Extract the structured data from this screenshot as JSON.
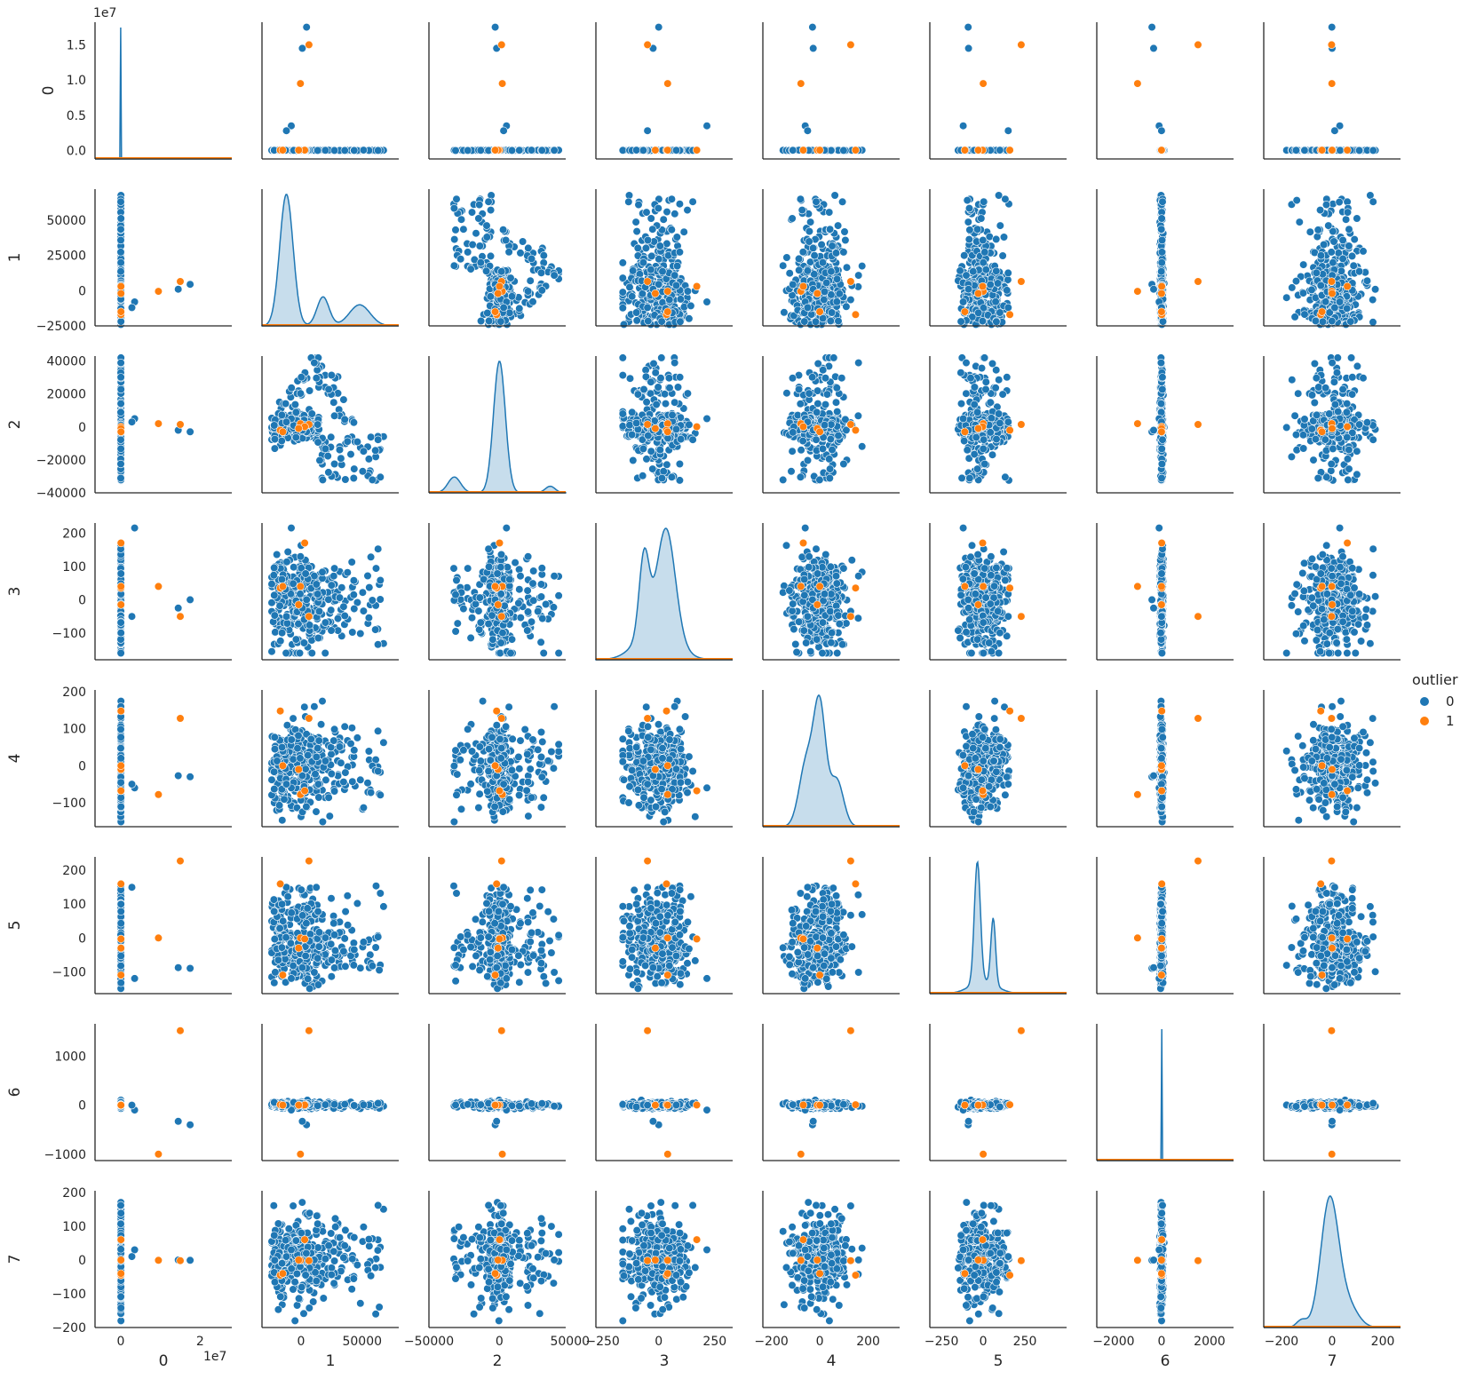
{
  "chart_data": {
    "type": "scatter",
    "chart_kind": "pairplot",
    "variables": [
      "0",
      "1",
      "2",
      "3",
      "4",
      "5",
      "6",
      "7"
    ],
    "diagonal": "kde",
    "offset_text": {
      "y_row0": "1e7",
      "x_col0": "1e7"
    },
    "hue": {
      "title": "outlier",
      "levels": [
        {
          "label": "0",
          "color": "#1f77b4"
        },
        {
          "label": "1",
          "color": "#ff7f0e"
        }
      ]
    },
    "axes": {
      "0": {
        "range": [
          -6500000,
          28000000
        ],
        "display_scale": 10000000,
        "y_range": [
          -1200000,
          18200000
        ],
        "x_ticks": [
          {
            "v": 0,
            "l": "0"
          },
          {
            "v": 20000000,
            "l": "2"
          }
        ],
        "y_ticks": [
          {
            "v": 0,
            "l": "0.0"
          },
          {
            "v": 5000000,
            "l": "0.5"
          },
          {
            "v": 10000000,
            "l": "1.0"
          },
          {
            "v": 15000000,
            "l": "1.5"
          }
        ]
      },
      "1": {
        "range": [
          -32000,
          80000
        ],
        "y_range": [
          -25000,
          72000
        ],
        "x_ticks": [
          {
            "v": 0,
            "l": "0"
          },
          {
            "v": 50000,
            "l": "50000"
          }
        ],
        "y_ticks": [
          {
            "v": -25000,
            "l": "−25000"
          },
          {
            "v": 0,
            "l": "0"
          },
          {
            "v": 25000,
            "l": "25000"
          },
          {
            "v": 50000,
            "l": "50000"
          }
        ]
      },
      "2": {
        "range": [
          -50000,
          47000
        ],
        "y_range": [
          -40000,
          43000
        ],
        "x_ticks": [
          {
            "v": -50000,
            "l": "−50000"
          },
          {
            "v": 0,
            "l": "0"
          },
          {
            "v": 50000,
            "l": "50000"
          }
        ],
        "y_ticks": [
          {
            "v": -40000,
            "l": "−40000"
          },
          {
            "v": -20000,
            "l": "−20000"
          },
          {
            "v": 0,
            "l": "0"
          },
          {
            "v": 20000,
            "l": "20000"
          },
          {
            "v": 40000,
            "l": "40000"
          }
        ]
      },
      "3": {
        "range": [
          -280,
          330
        ],
        "y_range": [
          -180,
          230
        ],
        "x_ticks": [
          {
            "v": -250,
            "l": "−250"
          },
          {
            "v": 0,
            "l": "0"
          },
          {
            "v": 250,
            "l": "250"
          }
        ],
        "y_ticks": [
          {
            "v": -100,
            "l": "−100"
          },
          {
            "v": 0,
            "l": "0"
          },
          {
            "v": 100,
            "l": "100"
          },
          {
            "v": 200,
            "l": "200"
          }
        ]
      },
      "4": {
        "range": [
          -235,
          330
        ],
        "y_range": [
          -165,
          205
        ],
        "x_ticks": [
          {
            "v": -200,
            "l": "−200"
          },
          {
            "v": 0,
            "l": "0"
          },
          {
            "v": 200,
            "l": "200"
          }
        ],
        "y_ticks": [
          {
            "v": -100,
            "l": "−100"
          },
          {
            "v": 0,
            "l": "0"
          },
          {
            "v": 100,
            "l": "100"
          },
          {
            "v": 200,
            "l": "200"
          }
        ]
      },
      "5": {
        "range": [
          -320,
          500
        ],
        "y_range": [
          -165,
          240
        ],
        "x_ticks": [
          {
            "v": -250,
            "l": "−250"
          },
          {
            "v": 0,
            "l": "0"
          },
          {
            "v": 250,
            "l": "250"
          }
        ],
        "y_ticks": [
          {
            "v": -100,
            "l": "−100"
          },
          {
            "v": 0,
            "l": "0"
          },
          {
            "v": 100,
            "l": "100"
          },
          {
            "v": 200,
            "l": "200"
          }
        ]
      },
      "6": {
        "range": [
          -2700,
          3000
        ],
        "y_range": [
          -1130,
          1660
        ],
        "x_ticks": [
          {
            "v": -2000,
            "l": "−2000"
          },
          {
            "v": 0,
            "l": "0"
          },
          {
            "v": 2000,
            "l": "2000"
          }
        ],
        "y_ticks": [
          {
            "v": -1000,
            "l": "−1000"
          },
          {
            "v": 0,
            "l": "0"
          },
          {
            "v": 1000,
            "l": "1000"
          }
        ]
      },
      "7": {
        "range": [
          -270,
          270
        ],
        "y_range": [
          -200,
          205
        ],
        "x_ticks": [
          {
            "v": -200,
            "l": "−200"
          },
          {
            "v": 0,
            "l": "0"
          },
          {
            "v": 200,
            "l": "200"
          }
        ],
        "y_ticks": [
          {
            "v": -200,
            "l": "−200"
          },
          {
            "v": -100,
            "l": "−100"
          },
          {
            "v": 0,
            "l": "0"
          },
          {
            "v": 100,
            "l": "100"
          },
          {
            "v": 200,
            "l": "200"
          }
        ]
      }
    },
    "outliers": [
      {
        "0": 15000000,
        "1": 6500,
        "2": 1500,
        "3": -50,
        "4": 128,
        "5": 228,
        "6": 1520,
        "7": -2
      },
      {
        "0": 9500000,
        "1": -500,
        "2": 2000,
        "3": 40,
        "4": -78,
        "5": 0,
        "6": -1000,
        "7": -1
      },
      {
        "0": 50000,
        "1": -17000,
        "2": -2000,
        "3": 35,
        "4": 148,
        "5": 160,
        "6": 10,
        "7": -45
      },
      {
        "0": 50000,
        "1": 3000,
        "2": 100,
        "3": 170,
        "4": -68,
        "5": -3,
        "6": 5,
        "7": 60
      },
      {
        "0": 50000,
        "1": -2000,
        "2": -1000,
        "3": -15,
        "4": -10,
        "5": -30,
        "6": 0,
        "7": 0
      },
      {
        "0": 50000,
        "1": -15000,
        "2": -3000,
        "3": 40,
        "4": 0,
        "5": -110,
        "6": 0,
        "7": -40
      }
    ],
    "highlighted_inliers": [
      {
        "0": 17500000,
        "1": 4500,
        "2": -3000,
        "3": 0,
        "4": -30,
        "5": -90,
        "6": -400,
        "7": -1
      },
      {
        "0": 14500000,
        "1": 1000,
        "2": -2000,
        "3": -25,
        "4": -27,
        "5": -88,
        "6": -330,
        "7": 0
      },
      {
        "0": 3500000,
        "1": -8000,
        "2": 5000,
        "3": 215,
        "4": -60,
        "5": -120,
        "6": -100,
        "7": 30
      },
      {
        "0": 2800000,
        "1": -12000,
        "2": 3000,
        "3": -50,
        "4": -50,
        "5": 150,
        "6": 0,
        "7": 10
      }
    ],
    "distributions": {
      "0": {
        "peaks": [
          [
            0,
            1,
            60000
          ]
        ]
      },
      "1": {
        "peaks": [
          [
            -12000,
            1,
            5500
          ],
          [
            18000,
            0.22,
            5000
          ],
          [
            48000,
            0.16,
            8500
          ]
        ]
      },
      "2": {
        "peaks": [
          [
            0,
            1,
            4200
          ],
          [
            -32000,
            0.12,
            4500
          ],
          [
            36000,
            0.05,
            3500
          ]
        ]
      },
      "3": {
        "peaks": [
          [
            -65,
            0.78,
            22
          ],
          [
            35,
            1,
            40
          ],
          [
            -10,
            0.35,
            80
          ]
        ]
      },
      "4": {
        "peaks": [
          [
            0,
            1,
            25
          ],
          [
            -55,
            0.55,
            30
          ],
          [
            70,
            0.4,
            28
          ]
        ]
      },
      "5": {
        "peaks": [
          [
            -35,
            1,
            18
          ],
          [
            60,
            0.55,
            14
          ],
          [
            0,
            0.1,
            80
          ]
        ]
      },
      "6": {
        "peaks": [
          [
            0,
            1,
            8
          ]
        ]
      },
      "7": {
        "peaks": [
          [
            -10,
            1,
            35
          ],
          [
            60,
            0.18,
            40
          ],
          [
            -120,
            0.06,
            20
          ]
        ]
      }
    }
  }
}
